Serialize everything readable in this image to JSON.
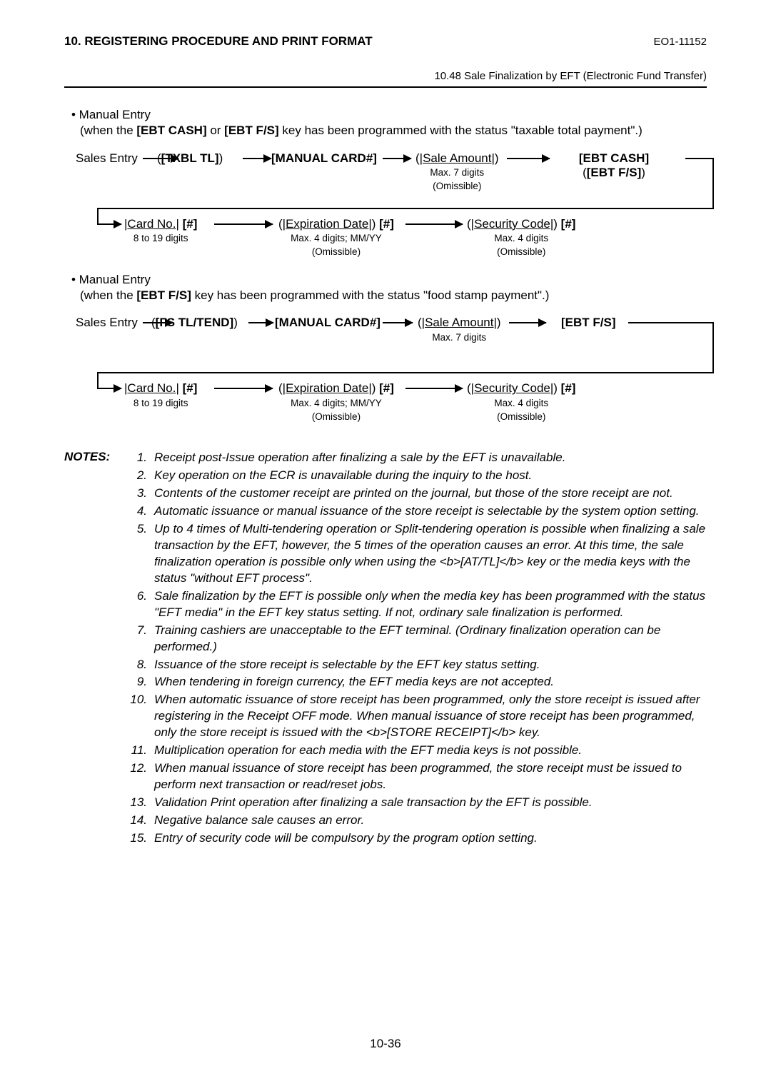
{
  "header": {
    "title": "10. REGISTERING PROCEDURE AND PRINT FORMAT",
    "doc_id": "EO1-11152",
    "subtitle": "10.48 Sale Finalization by EFT (Electronic Fund Transfer)"
  },
  "section1": {
    "title": "• Manual Entry",
    "desc_pre": "(when the ",
    "desc_k1": "[EBT CASH]",
    "desc_mid": " or ",
    "desc_k2": "[EBT F/S]",
    "desc_post": " key has been programmed with the status \"taxable total payment\".)"
  },
  "flow1": {
    "n1": "Sales Entry",
    "n2_pre": "(",
    "n2_key": "[TXBL TL]",
    "n2_post": ")",
    "n3": "[MANUAL CARD#]",
    "n4_pre": "(|",
    "n4_u": "Sale Amount",
    "n4_post": "|)",
    "n4_sub1": "Max. 7 digits",
    "n4_sub2": "(Omissible)",
    "n5a": "[EBT CASH]",
    "n5b_pre": "(",
    "n5b_key": "[EBT F/S]",
    "n5b_post": ")",
    "r2a_pre": "|",
    "r2a_u": "Card No.",
    "r2a_post": "|",
    "r2a_hash": " [#]",
    "r2a_sub": "8 to 19 digits",
    "r2b_pre": "(|",
    "r2b_u": "Expiration Date",
    "r2b_post": "|)",
    "r2b_hash": " [#]",
    "r2b_sub1": "Max. 4 digits; MM/YY",
    "r2b_sub2": "(Omissible)",
    "r2c_pre": "(|",
    "r2c_u": "Security Code",
    "r2c_post": "|)",
    "r2c_hash": " [#]",
    "r2c_sub1": "Max. 4 digits",
    "r2c_sub2": "(Omissible)"
  },
  "section2": {
    "title": "• Manual Entry",
    "desc_pre": "(when the ",
    "desc_k1": "[EBT F/S]",
    "desc_post": " key has been programmed with the status \"food stamp payment\".)"
  },
  "flow2": {
    "n1": "Sales Entry",
    "n2_pre": "(",
    "n2_key": "[FS TL/TEND]",
    "n2_post": ")",
    "n3": "[MANUAL CARD#]",
    "n4_pre": "(|",
    "n4_u": "Sale Amount",
    "n4_post": "|)",
    "n4_sub1": "Max. 7 digits",
    "n5": "[EBT F/S]",
    "r2a_pre": "|",
    "r2a_u": "Card No.",
    "r2a_post": "|",
    "r2a_hash": " [#]",
    "r2a_sub": "8 to 19 digits",
    "r2b_pre": "(|",
    "r2b_u": "Expiration Date",
    "r2b_post": "|)",
    "r2b_hash": " [#]",
    "r2b_sub1": "Max. 4 digits; MM/YY",
    "r2b_sub2": "(Omissible)",
    "r2c_pre": "(|",
    "r2c_u": "Security Code",
    "r2c_post": "|)",
    "r2c_hash": " [#]",
    "r2c_sub1": "Max. 4 digits",
    "r2c_sub2": "(Omissible)"
  },
  "notes_label": "NOTES:",
  "notes": [
    {
      "n": "1.",
      "t": "Receipt post-Issue operation after finalizing a sale by the EFT is unavailable."
    },
    {
      "n": "2.",
      "t": "Key operation on the ECR is unavailable during the inquiry to the host."
    },
    {
      "n": "3.",
      "t": "Contents of the customer receipt are printed on the journal, but those of the store receipt are not."
    },
    {
      "n": "4.",
      "t": "Automatic issuance or manual issuance of the store receipt is selectable by the system option setting."
    },
    {
      "n": "5.",
      "t": "Up to 4 times of Multi-tendering operation or Split-tendering operation is possible when finalizing a sale transaction by the EFT, however, the 5 times of the operation causes an error.  At this time, the sale finalization operation is possible only when using the <b>[AT/TL]</b> key or the media keys with the status \"without EFT process\"."
    },
    {
      "n": "6.",
      "t": "Sale finalization by the EFT is possible only when the media key has been programmed with the status \"EFT media\" in the EFT key status setting.  If not, ordinary sale finalization is performed."
    },
    {
      "n": "7.",
      "t": "Training cashiers are unacceptable to the EFT terminal.  (Ordinary finalization operation can be performed.)"
    },
    {
      "n": "8.",
      "t": "Issuance of the store receipt is selectable by the EFT key status setting."
    },
    {
      "n": "9.",
      "t": "When tendering in foreign currency, the EFT media keys are not accepted."
    },
    {
      "n": "10.",
      "t": "When automatic issuance of store receipt has been programmed, only the store receipt is issued after registering in the Receipt OFF mode.  When manual issuance of store receipt has been programmed, only the store receipt is issued with the <b>[STORE RECEIPT]</b> key."
    },
    {
      "n": "11.",
      "t": "Multiplication operation for each media with the EFT media keys is not possible."
    },
    {
      "n": "12.",
      "t": "When manual issuance of store receipt has been programmed, the store receipt must be issued to perform next transaction or read/reset jobs."
    },
    {
      "n": "13.",
      "t": "Validation Print operation after finalizing a sale transaction by the EFT is possible."
    },
    {
      "n": "14.",
      "t": "Negative balance sale causes an error."
    },
    {
      "n": "15.",
      "t": "Entry of security code will be compulsory by the program option setting."
    }
  ],
  "page_number": "10-36"
}
